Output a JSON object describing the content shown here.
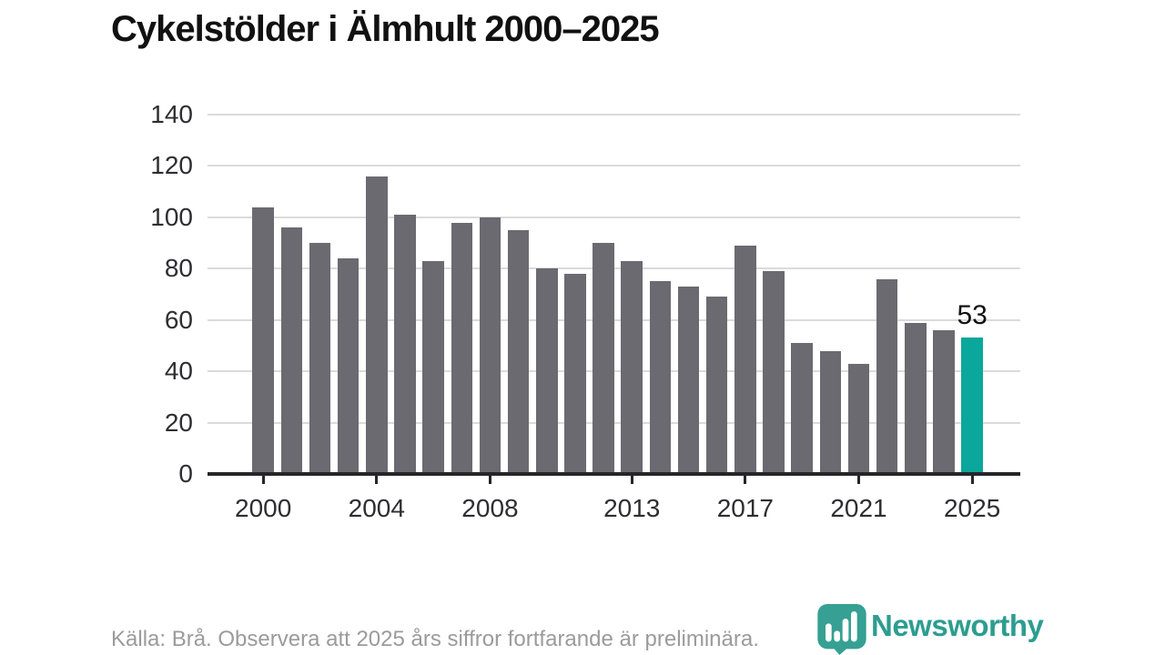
{
  "title": "Cykelstölder i Älmhult 2000–2025",
  "chart_data": {
    "type": "bar",
    "title": "Cykelstölder i Älmhult 2000–2025",
    "x": [
      2000,
      2001,
      2002,
      2003,
      2004,
      2005,
      2006,
      2007,
      2008,
      2009,
      2010,
      2011,
      2012,
      2013,
      2014,
      2015,
      2016,
      2017,
      2018,
      2019,
      2020,
      2021,
      2022,
      2023,
      2024,
      2025
    ],
    "values": [
      104,
      96,
      90,
      84,
      116,
      101,
      83,
      98,
      100,
      95,
      80,
      78,
      90,
      83,
      75,
      73,
      69,
      89,
      79,
      51,
      48,
      43,
      76,
      59,
      56,
      53
    ],
    "xlabel": "",
    "ylabel": "",
    "ylim": [
      0,
      140
    ],
    "yticks": [
      0,
      20,
      40,
      60,
      80,
      100,
      120,
      140
    ],
    "xticks": [
      2000,
      2004,
      2008,
      2013,
      2017,
      2021,
      2025
    ],
    "grid": "horizontal",
    "legend": "none",
    "bar_color": "#6a6a70",
    "highlight_color": "#0ba79c",
    "highlight_index": 25,
    "annotation": {
      "index": 25,
      "label": "53"
    }
  },
  "footer": {
    "source": "Källa: Brå. Observera att 2025 års siffror fortfarande är preliminära.",
    "brand": "Newsworthy"
  },
  "colors": {
    "accent_teal": "#0ba79c",
    "bar_gray": "#6a6a70",
    "logo_teal": "#35a093",
    "text_dark": "#111111",
    "text_gray": "#9b9b9b",
    "gridline": "#dbdbdb",
    "axis": "#26262a"
  }
}
